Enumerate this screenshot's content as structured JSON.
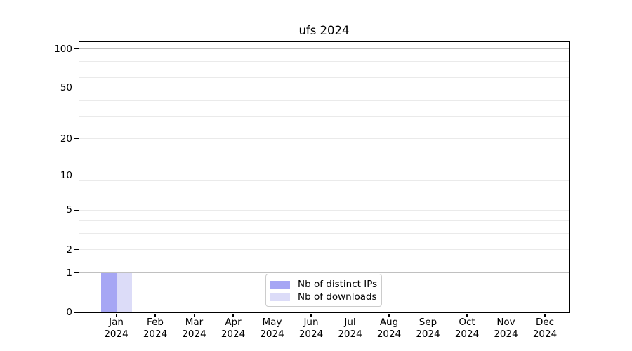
{
  "chart_data": {
    "type": "bar",
    "title": "ufs 2024",
    "months": [
      "Jan",
      "Feb",
      "Mar",
      "Apr",
      "May",
      "Jun",
      "Jul",
      "Aug",
      "Sep",
      "Oct",
      "Nov",
      "Dec"
    ],
    "year": "2024",
    "series": [
      {
        "name": "Nb of distinct IPs",
        "color": "#a6a6f4",
        "values": [
          1,
          0,
          0,
          0,
          0,
          0,
          0,
          0,
          0,
          0,
          0,
          0
        ]
      },
      {
        "name": "Nb of downloads",
        "color": "#dcdcf8",
        "values": [
          1,
          0,
          0,
          0,
          0,
          0,
          0,
          0,
          0,
          0,
          0,
          0
        ]
      }
    ],
    "xlabel": "",
    "ylabel": "",
    "yscale": "log1p",
    "ylim": [
      0,
      113
    ],
    "yticks": [
      0,
      1,
      2,
      5,
      10,
      20,
      50,
      100
    ],
    "ytick_minor": [
      2,
      3,
      4,
      5,
      6,
      7,
      8,
      9,
      20,
      30,
      40,
      50,
      60,
      70,
      80,
      90
    ],
    "ytick_major_grid": [
      1,
      10,
      100
    ],
    "grid": "both",
    "legend_position": "lower center",
    "colors": {
      "major_grid": "#c0c0c0",
      "minor_grid": "#eaeaea",
      "axis": "#000000",
      "background": "#ffffff"
    }
  }
}
